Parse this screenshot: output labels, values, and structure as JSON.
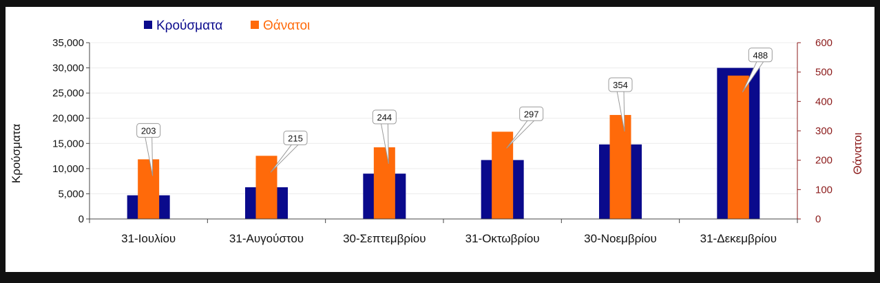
{
  "chart_data": {
    "type": "bar",
    "categories": [
      "31-Ιουλίου",
      "31-Αυγούστου",
      "30-Σεπτεμβρίου",
      "31-Οκτωβρίου",
      "30-Νοεμβρίου",
      "31-Δεκεμβρίου"
    ],
    "series": [
      {
        "name": "Κρούσματα",
        "axis": "left",
        "color": "#0a0a8c",
        "values": [
          4700,
          6300,
          9000,
          11700,
          14800,
          30000
        ]
      },
      {
        "name": "Θάνατοι",
        "axis": "right",
        "color": "#ff6a0a",
        "values": [
          203,
          215,
          244,
          297,
          354,
          488
        ],
        "data_labels": [
          "203",
          "215",
          "244",
          "297",
          "354",
          "488"
        ]
      }
    ],
    "ylabel": "Κρούσματα",
    "ylabel_right": "Θάνατοι",
    "ylim": [
      0,
      35000
    ],
    "ylim_right": [
      0,
      600
    ],
    "yticks": [
      "0",
      "5,000",
      "10,000",
      "15,000",
      "20,000",
      "25,000",
      "30,000",
      "35,000"
    ],
    "yticks_right": [
      "0",
      "100",
      "200",
      "300",
      "400",
      "500",
      "600"
    ],
    "grid": true,
    "legend_position": "top-left",
    "right_axis_color": "#8b1a1a"
  }
}
